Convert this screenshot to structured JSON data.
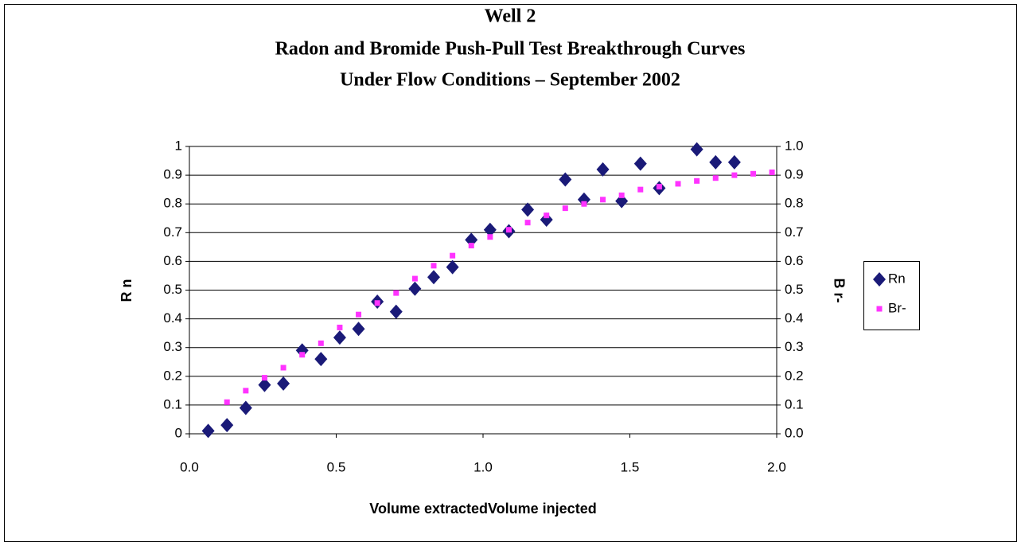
{
  "chart_data": {
    "type": "scatter",
    "title": [
      "Well 2",
      "Radon and Bromide Push-Pull Test Breakthrough Curves",
      "Under Flow Conditions – September 2002"
    ],
    "xlabel": "Volume extractedVolume injected",
    "ylabel": "R n",
    "y2label": "B r-",
    "xlim": [
      0,
      2
    ],
    "xticks": [
      {
        "value": 0,
        "label": "0.0"
      },
      {
        "value": 0.5,
        "label": "0.5"
      },
      {
        "value": 1,
        "label": "1.0"
      },
      {
        "value": 1.5,
        "label": "1.5"
      },
      {
        "value": 2,
        "label": "2.0"
      }
    ],
    "ylim": [
      0,
      1
    ],
    "yticks": [
      0,
      0.1,
      0.2,
      0.3,
      0.4,
      0.5,
      0.6,
      0.7,
      0.8,
      0.9,
      1
    ],
    "y2lim": [
      0,
      1
    ],
    "y2ticks": [
      {
        "value": 0,
        "label": "0.0"
      },
      {
        "value": 0.1,
        "label": "0.1"
      },
      {
        "value": 0.2,
        "label": "0.2"
      },
      {
        "value": 0.3,
        "label": "0.3"
      },
      {
        "value": 0.4,
        "label": "0.4"
      },
      {
        "value": 0.5,
        "label": "0.5"
      },
      {
        "value": 0.6,
        "label": "0.6"
      },
      {
        "value": 0.7,
        "label": "0.7"
      },
      {
        "value": 0.8,
        "label": "0.8"
      },
      {
        "value": 0.9,
        "label": "0.9"
      },
      {
        "value": 1,
        "label": "1.0"
      }
    ],
    "grid": true,
    "legend": "right",
    "series": [
      {
        "name": "Rn",
        "color": "#1a1a78",
        "marker": "diamond",
        "x": [
          0.064,
          0.128,
          0.192,
          0.256,
          0.32,
          0.384,
          0.448,
          0.512,
          0.576,
          0.64,
          0.704,
          0.768,
          0.832,
          0.896,
          0.96,
          1.024,
          1.088,
          1.152,
          1.216,
          1.28,
          1.344,
          1.408,
          1.472,
          1.536,
          1.6,
          1.728,
          1.792,
          1.856
        ],
        "values": [
          0.01,
          0.03,
          0.09,
          0.17,
          0.175,
          0.29,
          0.26,
          0.335,
          0.365,
          0.46,
          0.425,
          0.505,
          0.545,
          0.58,
          0.675,
          0.71,
          0.705,
          0.78,
          0.745,
          0.885,
          0.815,
          0.92,
          0.81,
          0.94,
          0.855,
          0.99,
          0.945,
          0.945
        ]
      },
      {
        "name": "Br-",
        "color": "#ff33ff",
        "marker": "square",
        "axis": "y2",
        "x": [
          0.128,
          0.192,
          0.256,
          0.32,
          0.384,
          0.448,
          0.512,
          0.576,
          0.64,
          0.704,
          0.768,
          0.832,
          0.896,
          0.96,
          1.024,
          1.088,
          1.152,
          1.216,
          1.28,
          1.344,
          1.408,
          1.472,
          1.536,
          1.6,
          1.664,
          1.728,
          1.792,
          1.856,
          1.92,
          1.984
        ],
        "values": [
          0.11,
          0.15,
          0.195,
          0.23,
          0.275,
          0.315,
          0.37,
          0.415,
          0.455,
          0.49,
          0.54,
          0.585,
          0.62,
          0.655,
          0.685,
          0.71,
          0.735,
          0.76,
          0.785,
          0.8,
          0.815,
          0.83,
          0.85,
          0.86,
          0.87,
          0.88,
          0.89,
          0.9,
          0.905,
          0.91
        ]
      }
    ]
  }
}
